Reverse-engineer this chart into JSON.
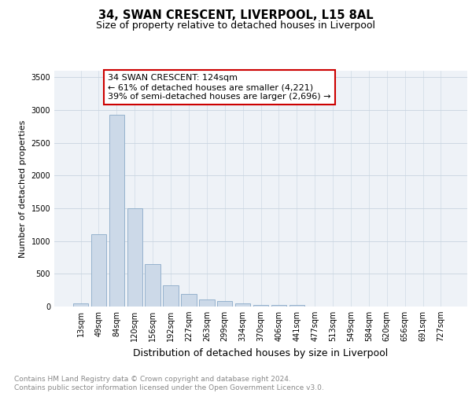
{
  "title": "34, SWAN CRESCENT, LIVERPOOL, L15 8AL",
  "subtitle": "Size of property relative to detached houses in Liverpool",
  "xlabel": "Distribution of detached houses by size in Liverpool",
  "ylabel": "Number of detached properties",
  "categories": [
    "13sqm",
    "49sqm",
    "84sqm",
    "120sqm",
    "156sqm",
    "192sqm",
    "227sqm",
    "263sqm",
    "299sqm",
    "334sqm",
    "370sqm",
    "406sqm",
    "441sqm",
    "477sqm",
    "513sqm",
    "549sqm",
    "584sqm",
    "620sqm",
    "656sqm",
    "691sqm",
    "727sqm"
  ],
  "values": [
    48,
    1110,
    2930,
    1500,
    650,
    330,
    190,
    105,
    90,
    50,
    30,
    30,
    22,
    3,
    0,
    0,
    0,
    0,
    0,
    0,
    0
  ],
  "bar_color": "#ccd9e8",
  "bar_edge_color": "#8aaac8",
  "bar_linewidth": 0.6,
  "annotation_box_text": "34 SWAN CRESCENT: 124sqm\n← 61% of detached houses are smaller (4,221)\n39% of semi-detached houses are larger (2,696) →",
  "annotation_box_color": "#ffffff",
  "annotation_box_edge_color": "#cc0000",
  "ylim": [
    0,
    3600
  ],
  "yticks": [
    0,
    500,
    1000,
    1500,
    2000,
    2500,
    3000,
    3500
  ],
  "grid_color": "#c8d4e0",
  "bg_color": "#eef2f7",
  "footer_text": "Contains HM Land Registry data © Crown copyright and database right 2024.\nContains public sector information licensed under the Open Government Licence v3.0.",
  "title_fontsize": 10.5,
  "subtitle_fontsize": 9,
  "xlabel_fontsize": 9,
  "ylabel_fontsize": 8,
  "tick_fontsize": 7,
  "annotation_fontsize": 8,
  "footer_fontsize": 6.5
}
